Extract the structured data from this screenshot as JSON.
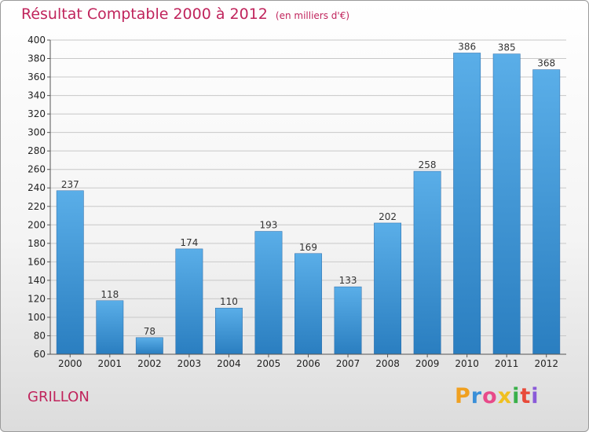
{
  "header": {
    "title": "Résultat Comptable 2000 à 2012",
    "subtitle": "(en milliers d'€)"
  },
  "footer": {
    "commune": "GRILLON",
    "logo_letters": [
      "P",
      "r",
      "o",
      "x",
      "i",
      "t",
      "i"
    ],
    "logo_colors": [
      "#f0a020",
      "#3a8fd8",
      "#e84a8a",
      "#f0c020",
      "#3ab04a",
      "#e84a3a",
      "#8a5ad8"
    ]
  },
  "colors": {
    "title": "#c0245c",
    "bar_top": "#5aaee8",
    "bar_bottom": "#2a7ec0"
  },
  "chart_data": {
    "type": "bar",
    "title": "Résultat Comptable 2000 à 2012",
    "xlabel": "",
    "ylabel": "",
    "categories": [
      "2000",
      "2001",
      "2002",
      "2003",
      "2004",
      "2005",
      "2006",
      "2007",
      "2008",
      "2009",
      "2010",
      "2011",
      "2012"
    ],
    "values": [
      237,
      118,
      78,
      174,
      110,
      193,
      169,
      133,
      202,
      258,
      386,
      385,
      368
    ],
    "ylim": [
      60,
      400
    ],
    "yticks": [
      60,
      80,
      100,
      120,
      140,
      160,
      180,
      200,
      220,
      240,
      260,
      280,
      300,
      320,
      340,
      360,
      380,
      400
    ],
    "grid": true
  }
}
